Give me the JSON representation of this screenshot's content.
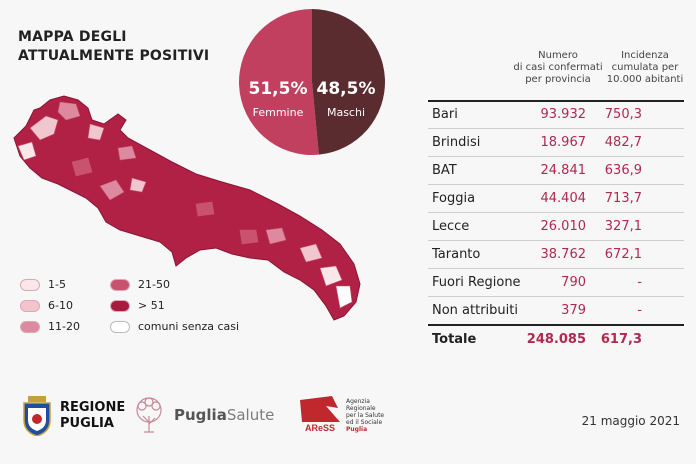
{
  "title": {
    "line1": "MAPPA DEGLI",
    "line2": "ATTUALMENTE POSITIVI"
  },
  "gender": {
    "female_pct": "51,5%",
    "female_label": "Femmine",
    "male_pct": "48,5%",
    "male_label": "Maschi",
    "female_share": 0.515,
    "female_color": "#c1405f",
    "male_color": "#5a2b2f"
  },
  "legend": [
    {
      "label": "1-5",
      "color": "#fbe6e9"
    },
    {
      "label": "6-10",
      "color": "#f4c3cd"
    },
    {
      "label": "11-20",
      "color": "#dd8aa0"
    },
    {
      "label": "21-50",
      "color": "#c9536e"
    },
    {
      "label": "> 51",
      "color": "#a81a3e"
    },
    {
      "label": "comuni senza casi",
      "color": "#ffffff"
    }
  ],
  "table": {
    "col_cases": [
      "Numero",
      "di casi confermati",
      "per provincia"
    ],
    "col_incidence": [
      "Incidenza",
      "cumulata per",
      "10.000 abitanti"
    ],
    "rows": [
      {
        "name": "Bari",
        "cases": "93.932",
        "incidence": "750,3"
      },
      {
        "name": "Brindisi",
        "cases": "18.967",
        "incidence": "482,7"
      },
      {
        "name": "BAT",
        "cases": "24.841",
        "incidence": "636,9"
      },
      {
        "name": "Foggia",
        "cases": "44.404",
        "incidence": "713,7"
      },
      {
        "name": "Lecce",
        "cases": "26.010",
        "incidence": "327,1"
      },
      {
        "name": "Taranto",
        "cases": "38.762",
        "incidence": "672,1"
      },
      {
        "name": "Fuori Regione",
        "cases": "790",
        "incidence": "-"
      },
      {
        "name": "Non attribuiti",
        "cases": "379",
        "incidence": "-"
      }
    ],
    "total": {
      "name": "Totale",
      "cases": "248.085",
      "incidence": "617,3"
    }
  },
  "footer": {
    "regione_line1": "REGIONE",
    "regione_line2": "PUGLIA",
    "puglia_salute_bold": "Puglia",
    "puglia_salute_light": "Salute",
    "aress_logo_text": "AReSS",
    "aress_lines": [
      "Agenzia",
      "Regionale",
      "per la Salute",
      "ed il Sociale",
      "Puglia"
    ],
    "date": "21 maggio 2021"
  }
}
